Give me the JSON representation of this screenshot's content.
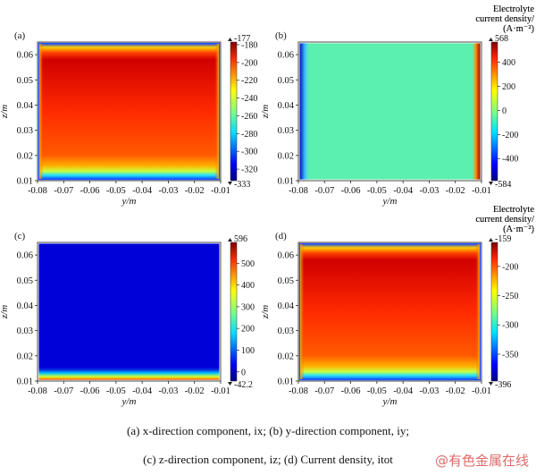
{
  "chart_data": [
    {
      "type": "heatmap",
      "panel": "(a)",
      "xlabel": "y/m",
      "ylabel": "z/m",
      "xlim": [
        -0.08,
        -0.01
      ],
      "ylim": [
        0.01,
        0.065
      ],
      "xticks": [
        "-0.08",
        "-0.07",
        "-0.06",
        "-0.05",
        "-0.04",
        "-0.03",
        "-0.02",
        "-0.01"
      ],
      "yticks": [
        "0.01",
        "0.02",
        "0.03",
        "0.04",
        "0.05",
        "0.06"
      ],
      "colorbar": {
        "title": [
          "Electrolyte",
          "current density/",
          "(A·m⁻²)"
        ],
        "max": -177,
        "max_label": "-177",
        "min": -333,
        "min_label": "-333",
        "ticks": [
          "-180",
          "-200",
          "-220",
          "-240",
          "-260",
          "-280",
          "-300",
          "-320"
        ],
        "tick_values": [
          -180,
          -200,
          -220,
          -240,
          -260,
          -280,
          -300,
          -320
        ]
      },
      "pattern": "a"
    },
    {
      "type": "heatmap",
      "panel": "(b)",
      "xlabel": "y/m",
      "ylabel": "z/m",
      "xlim": [
        -0.08,
        -0.01
      ],
      "ylim": [
        0.01,
        0.065
      ],
      "xticks": [
        "-0.08",
        "-0.07",
        "-0.06",
        "-0.05",
        "-0.04",
        "-0.03",
        "-0.02",
        "-0.01"
      ],
      "yticks": [
        "0.01",
        "0.02",
        "0.03",
        "0.04",
        "0.05",
        "0.06"
      ],
      "colorbar": {
        "title": [
          "Electrolyte",
          "current density/",
          "(A·m⁻²)"
        ],
        "max": 568,
        "max_label": "568",
        "min": -584,
        "min_label": "-584",
        "ticks": [
          "400",
          "200",
          "0",
          "-200",
          "-400"
        ],
        "tick_values": [
          400,
          200,
          0,
          -200,
          -400
        ]
      },
      "pattern": "b"
    },
    {
      "type": "heatmap",
      "panel": "(c)",
      "xlabel": "y/m",
      "ylabel": "z/m",
      "xlim": [
        -0.08,
        -0.01
      ],
      "ylim": [
        0.01,
        0.065
      ],
      "xticks": [
        "-0.08",
        "-0.07",
        "-0.06",
        "-0.05",
        "-0.04",
        "-0.03",
        "-0.02",
        "-0.01"
      ],
      "yticks": [
        "0.01",
        "0.02",
        "0.03",
        "0.04",
        "0.05",
        "0.06"
      ],
      "colorbar": {
        "title": [
          "Electrolyte",
          "current density/",
          "(A·m⁻²)"
        ],
        "max": 596,
        "max_label": "596",
        "min": -42.2,
        "min_label": "-42.2",
        "ticks": [
          "500",
          "400",
          "300",
          "200",
          "100",
          "0"
        ],
        "tick_values": [
          500,
          400,
          300,
          200,
          100,
          0
        ]
      },
      "pattern": "c"
    },
    {
      "type": "heatmap",
      "panel": "(d)",
      "xlabel": "y/m",
      "ylabel": "z/m",
      "xlim": [
        -0.08,
        -0.01
      ],
      "ylim": [
        0.01,
        0.065
      ],
      "xticks": [
        "-0.08",
        "-0.07",
        "-0.06",
        "-0.05",
        "-0.04",
        "-0.03",
        "-0.02",
        "-0.01"
      ],
      "yticks": [
        "0.01",
        "0.02",
        "0.03",
        "0.04",
        "0.05",
        "0.06"
      ],
      "colorbar": {
        "title": [
          "Electrolyte",
          "current density/",
          "(A·m⁻²)"
        ],
        "max": -159,
        "max_label": "-159",
        "min": -396,
        "min_label": "-396",
        "ticks": [
          "-200",
          "-250",
          "-300",
          "-350"
        ],
        "tick_values": [
          -200,
          -250,
          -300,
          -350
        ]
      },
      "pattern": "d"
    }
  ],
  "caption": {
    "line1": "(a) x-direction component, ix; (b) y-direction component, iy;",
    "line2": "(c) z-direction component, iz; (d) Current density, itot"
  },
  "watermark": "@有色金属在线"
}
